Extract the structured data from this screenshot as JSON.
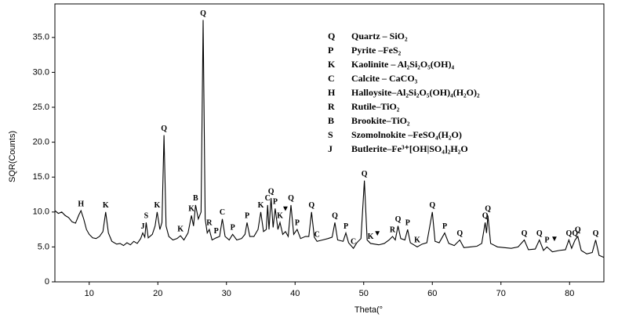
{
  "chart_data": {
    "type": "line",
    "xlabel": "Theta(°",
    "ylabel": "SQR(Counts)",
    "xlim": [
      5,
      85
    ],
    "ylim": [
      0,
      39.8
    ],
    "xticks": [
      10,
      20,
      30,
      40,
      50,
      60,
      70,
      80
    ],
    "yticks": [
      0,
      {
        "value": 5,
        "label": "5.0"
      },
      {
        "value": 10,
        "label": "10.0"
      },
      {
        "value": 15,
        "label": "15.0"
      },
      {
        "value": 20,
        "label": "20.0"
      },
      {
        "value": 25,
        "label": "25.0"
      },
      {
        "value": 30,
        "label": "30.0"
      },
      {
        "value": 35,
        "label": "35.0"
      }
    ],
    "series": [
      {
        "color": "#000000",
        "x": [
          5,
          5.5,
          6,
          6.5,
          7,
          7.5,
          8,
          8.5,
          8.8,
          9.2,
          9.6,
          10,
          10.5,
          11,
          11.5,
          12,
          12.4,
          12.8,
          13.3,
          14,
          14.5,
          15,
          15.5,
          16,
          16.5,
          17,
          17.5,
          17.8,
          18.1,
          18.3,
          18.6,
          19.2,
          19.6,
          19.9,
          20.3,
          20.6,
          20.9,
          21.2,
          21.6,
          22.2,
          22.8,
          23.3,
          23.8,
          24.4,
          24.9,
          25.2,
          25.5,
          25.9,
          26.3,
          26.6,
          26.9,
          27.2,
          27.5,
          27.9,
          28.5,
          29,
          29.4,
          29.8,
          30.4,
          30.9,
          31.5,
          32.2,
          32.7,
          33,
          33.4,
          34,
          34.6,
          35,
          35.4,
          35.8,
          36,
          36.2,
          36.5,
          36.8,
          37.1,
          37.5,
          37.8,
          38.2,
          38.6,
          39,
          39.4,
          39.8,
          40.3,
          40.8,
          41.5,
          42,
          42.4,
          42.8,
          43.2,
          44,
          44.8,
          45.4,
          45.8,
          46.2,
          47,
          47.4,
          47.8,
          48.5,
          49,
          49.6,
          50.1,
          50.5,
          51,
          51.6,
          52.2,
          53,
          53.7,
          54.2,
          54.6,
          55,
          55.4,
          56,
          56.4,
          56.8,
          57.8,
          58.5,
          59.2,
          60,
          60.4,
          61,
          61.8,
          62.4,
          63.2,
          64,
          64.6,
          65.5,
          66.5,
          67.2,
          67.7,
          67.9,
          68.1,
          68.5,
          69.5,
          70.5,
          71.5,
          72.5,
          73.4,
          74,
          75,
          75.6,
          76.2,
          76.7,
          77.5,
          78.5,
          79.4,
          79.9,
          80.3,
          80.8,
          81.2,
          81.7,
          82.5,
          83.3,
          83.8,
          84.3,
          85
        ],
        "values": [
          10.2,
          9.8,
          10,
          9.5,
          9.2,
          8.6,
          8.4,
          9.6,
          10.2,
          9,
          7.5,
          6.8,
          6.3,
          6.2,
          6.5,
          7.2,
          10,
          7,
          5.8,
          5.4,
          5.5,
          5.2,
          5.6,
          5.3,
          5.8,
          5.5,
          6.2,
          7,
          6.4,
          8.5,
          6.3,
          6.8,
          8,
          10,
          7.5,
          8.5,
          21,
          8,
          6.5,
          6,
          6.2,
          6.6,
          6,
          7,
          9.5,
          8,
          11,
          9,
          10,
          37.5,
          9,
          7,
          7.5,
          6,
          6.3,
          6.5,
          9,
          6.5,
          6,
          6.8,
          6,
          6.2,
          6.8,
          8.5,
          6.5,
          6.5,
          7.5,
          10,
          7.2,
          7.5,
          11,
          7.5,
          12,
          7.8,
          10.5,
          7.5,
          8.5,
          6.8,
          7.2,
          6.5,
          11,
          6.8,
          7.5,
          6.2,
          6.5,
          6.5,
          10,
          6.4,
          5.8,
          6,
          6.2,
          6.4,
          8.5,
          6,
          5.8,
          7,
          5.6,
          4.8,
          5.6,
          6.2,
          14.5,
          6,
          5.5,
          5.4,
          5.3,
          5.5,
          6,
          6.5,
          6,
          8,
          6.2,
          6,
          7.5,
          5.6,
          5,
          5.4,
          5.6,
          10,
          5.8,
          5.6,
          7,
          5.5,
          5.2,
          6,
          4.9,
          5,
          5.1,
          5.5,
          8.5,
          7,
          9.5,
          5.5,
          5,
          4.9,
          4.8,
          5,
          6,
          4.6,
          4.7,
          6,
          4.5,
          5,
          4.3,
          4.5,
          4.6,
          6,
          4.8,
          6,
          6.5,
          4.5,
          4,
          4.2,
          6,
          3.8,
          3.5
        ]
      }
    ],
    "annotations": [
      {
        "text": "H",
        "x": 8.8,
        "y": 10.2
      },
      {
        "text": "K",
        "x": 12.4,
        "y": 10
      },
      {
        "text": "J",
        "x": 17.8,
        "y": 7
      },
      {
        "text": "S",
        "x": 18.3,
        "y": 8.5
      },
      {
        "text": "K",
        "x": 19.9,
        "y": 10
      },
      {
        "text": "Q",
        "x": 20.9,
        "y": 21
      },
      {
        "text": "K",
        "x": 23.3,
        "y": 6.6
      },
      {
        "text": "K",
        "x": 24.9,
        "y": 9.5
      },
      {
        "text": "B",
        "x": 25.5,
        "y": 11
      },
      {
        "text": "Q",
        "x": 26.6,
        "y": 37.5
      },
      {
        "text": "R",
        "x": 27.5,
        "y": 7.5
      },
      {
        "text": "P",
        "x": 28.5,
        "y": 6.3
      },
      {
        "text": "C",
        "x": 29.4,
        "y": 9
      },
      {
        "text": "P",
        "x": 30.9,
        "y": 6.8
      },
      {
        "text": "P",
        "x": 33,
        "y": 8.5
      },
      {
        "text": "K",
        "x": 35,
        "y": 10
      },
      {
        "text": "C",
        "x": 36,
        "y": 11
      },
      {
        "text": "Q",
        "x": 36.5,
        "y": 12
      },
      {
        "text": "P",
        "x": 37.1,
        "y": 10.5
      },
      {
        "text": "K",
        "x": 37.8,
        "y": 8.5
      },
      {
        "text": "▼",
        "x": 38.6,
        "y": 9.5
      },
      {
        "text": "Q",
        "x": 39.4,
        "y": 11
      },
      {
        "text": "P",
        "x": 40.3,
        "y": 7.5
      },
      {
        "text": "Q",
        "x": 42.4,
        "y": 10
      },
      {
        "text": "C",
        "x": 43.2,
        "y": 5.8
      },
      {
        "text": "Q",
        "x": 45.8,
        "y": 8.5
      },
      {
        "text": "P",
        "x": 47.4,
        "y": 7
      },
      {
        "text": "C",
        "x": 48.5,
        "y": 4.8
      },
      {
        "text": "Q",
        "x": 50.1,
        "y": 14.5
      },
      {
        "text": "K",
        "x": 51,
        "y": 5.5
      },
      {
        "text": "▼",
        "x": 52,
        "y": 6
      },
      {
        "text": "R",
        "x": 54.2,
        "y": 6.5
      },
      {
        "text": "Q",
        "x": 55,
        "y": 8
      },
      {
        "text": "P",
        "x": 56.4,
        "y": 7.5
      },
      {
        "text": "K",
        "x": 57.8,
        "y": 5
      },
      {
        "text": "Q",
        "x": 60,
        "y": 10
      },
      {
        "text": "P",
        "x": 61.8,
        "y": 7
      },
      {
        "text": "Q",
        "x": 64,
        "y": 6
      },
      {
        "text": "Q",
        "x": 67.7,
        "y": 8.5
      },
      {
        "text": "Q",
        "x": 68.1,
        "y": 9.5
      },
      {
        "text": "Q",
        "x": 73.4,
        "y": 6
      },
      {
        "text": "Q",
        "x": 75.6,
        "y": 6
      },
      {
        "text": "P",
        "x": 76.7,
        "y": 5
      },
      {
        "text": "▼",
        "x": 77.8,
        "y": 5.2
      },
      {
        "text": "Q",
        "x": 79.9,
        "y": 6
      },
      {
        "text": "Q",
        "x": 80.8,
        "y": 6
      },
      {
        "text": "Q",
        "x": 81.2,
        "y": 6.5
      },
      {
        "text": "Q",
        "x": 83.8,
        "y": 6
      }
    ],
    "key": [
      {
        "symbol": "Q",
        "label": "Quartz – SiO₂"
      },
      {
        "symbol": "P",
        "label": "Pyrite –FeS₂"
      },
      {
        "symbol": "K",
        "label": "Kaolinite – Al₂Si₂O₅(OH)₄"
      },
      {
        "symbol": "C",
        "label": "Calcite – CaCO₃"
      },
      {
        "symbol": "H",
        "label": "Halloysite–Al₂Si₂O₅(OH)₄(H₂O)₂"
      },
      {
        "symbol": "R",
        "label": "Rutile–TiO₂"
      },
      {
        "symbol": "B",
        "label": "Brookite–TiO₂"
      },
      {
        "symbol": "S",
        "label": "Szomolnokite –FeSO₄(H₂O)"
      },
      {
        "symbol": "J",
        "label": "Butlerite–Fe³⁺[OH|SO₄]₂H₂O"
      }
    ]
  }
}
